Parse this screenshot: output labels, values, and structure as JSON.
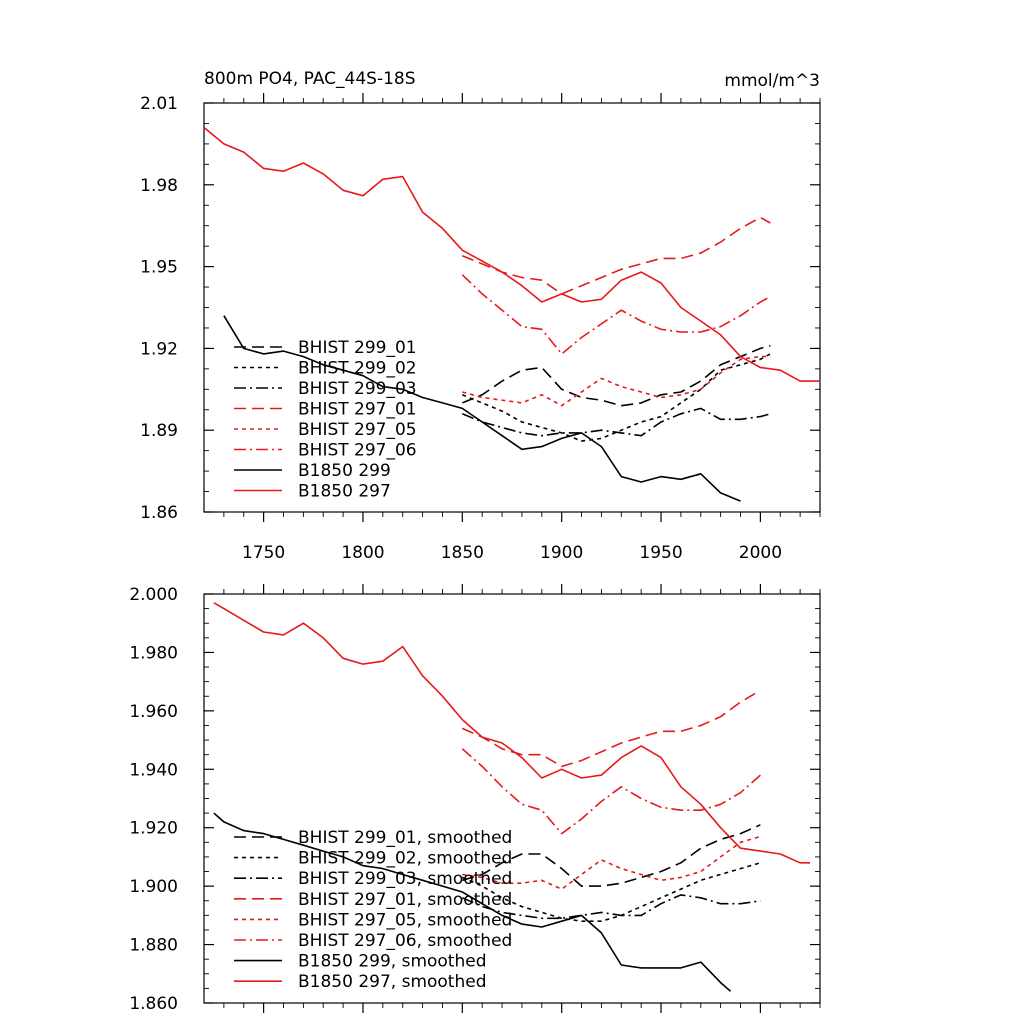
{
  "chart_data": [
    {
      "type": "line",
      "title": "800m PO4, PAC_44S-18S",
      "units": "mmol/m^3",
      "xlim": [
        1720,
        2030
      ],
      "ylim": [
        1.86,
        2.01
      ],
      "yticks": [
        "2.01",
        "1.98",
        "1.95",
        "1.92",
        "1.89",
        "1.86"
      ],
      "xticks": [
        "1750",
        "1800",
        "1850",
        "1900",
        "1950",
        "2000"
      ],
      "series": [
        {
          "name": "BHIST 299_01",
          "color": "#000000",
          "dash": "12,6",
          "x": [
            1850,
            1860,
            1870,
            1880,
            1890,
            1900,
            1910,
            1920,
            1930,
            1940,
            1950,
            1960,
            1970,
            1980,
            1990,
            2000,
            2005
          ],
          "y": [
            1.9,
            1.903,
            1.908,
            1.912,
            1.913,
            1.905,
            1.902,
            1.901,
            1.899,
            1.9,
            1.903,
            1.904,
            1.908,
            1.914,
            1.917,
            1.92,
            1.921
          ]
        },
        {
          "name": "BHIST 299_02",
          "color": "#000000",
          "dash": "4,4",
          "x": [
            1850,
            1860,
            1870,
            1880,
            1890,
            1900,
            1910,
            1920,
            1930,
            1940,
            1950,
            1960,
            1970,
            1980,
            1990,
            2000,
            2005
          ],
          "y": [
            1.903,
            1.9,
            1.897,
            1.893,
            1.891,
            1.889,
            1.886,
            1.887,
            1.89,
            1.893,
            1.895,
            1.9,
            1.905,
            1.912,
            1.914,
            1.916,
            1.918
          ]
        },
        {
          "name": "BHIST 299_03",
          "color": "#000000",
          "dash": "12,4,2,4",
          "x": [
            1850,
            1860,
            1870,
            1880,
            1890,
            1900,
            1910,
            1920,
            1930,
            1940,
            1950,
            1960,
            1970,
            1980,
            1990,
            2000,
            2005
          ],
          "y": [
            1.896,
            1.893,
            1.891,
            1.889,
            1.888,
            1.889,
            1.889,
            1.89,
            1.889,
            1.888,
            1.893,
            1.896,
            1.898,
            1.894,
            1.894,
            1.895,
            1.896
          ]
        },
        {
          "name": "BHIST 297_01",
          "color": "#e8191c",
          "dash": "12,6",
          "x": [
            1850,
            1860,
            1870,
            1880,
            1890,
            1900,
            1910,
            1920,
            1930,
            1940,
            1950,
            1960,
            1970,
            1980,
            1990,
            2000,
            2005
          ],
          "y": [
            1.954,
            1.951,
            1.948,
            1.946,
            1.945,
            1.94,
            1.943,
            1.946,
            1.949,
            1.951,
            1.953,
            1.953,
            1.955,
            1.959,
            1.964,
            1.968,
            1.966
          ]
        },
        {
          "name": "BHIST 297_05",
          "color": "#e8191c",
          "dash": "4,4",
          "x": [
            1850,
            1860,
            1870,
            1880,
            1890,
            1900,
            1910,
            1920,
            1930,
            1940,
            1950,
            1960,
            1970,
            1980,
            1990,
            2000,
            2005
          ],
          "y": [
            1.904,
            1.902,
            1.901,
            1.9,
            1.903,
            1.899,
            1.904,
            1.909,
            1.906,
            1.904,
            1.902,
            1.903,
            1.905,
            1.911,
            1.916,
            1.917,
            1.917
          ]
        },
        {
          "name": "BHIST 297_06",
          "color": "#e8191c",
          "dash": "12,4,2,4",
          "x": [
            1850,
            1860,
            1870,
            1880,
            1890,
            1900,
            1910,
            1920,
            1930,
            1940,
            1950,
            1960,
            1970,
            1980,
            1990,
            2000,
            2005
          ],
          "y": [
            1.947,
            1.94,
            1.934,
            1.928,
            1.927,
            1.918,
            1.924,
            1.929,
            1.934,
            1.93,
            1.927,
            1.926,
            1.926,
            1.928,
            1.932,
            1.937,
            1.939
          ]
        },
        {
          "name": "B1850 299",
          "color": "#000000",
          "dash": "",
          "x": [
            1730,
            1740,
            1750,
            1760,
            1770,
            1780,
            1790,
            1800,
            1810,
            1820,
            1830,
            1840,
            1850,
            1860,
            1870,
            1880,
            1890,
            1900,
            1910,
            1920,
            1930,
            1940,
            1950,
            1960,
            1970,
            1980,
            1990
          ],
          "y": [
            1.932,
            1.92,
            1.918,
            1.919,
            1.917,
            1.914,
            1.912,
            1.91,
            1.906,
            1.905,
            1.902,
            1.9,
            1.898,
            1.893,
            1.888,
            1.883,
            1.884,
            1.887,
            1.889,
            1.884,
            1.873,
            1.871,
            1.873,
            1.872,
            1.874,
            1.867,
            1.864
          ]
        },
        {
          "name": "B1850 297",
          "color": "#e8191c",
          "dash": "",
          "x": [
            1720,
            1730,
            1740,
            1750,
            1760,
            1770,
            1780,
            1790,
            1800,
            1810,
            1820,
            1830,
            1840,
            1850,
            1860,
            1870,
            1880,
            1890,
            1900,
            1910,
            1920,
            1930,
            1940,
            1950,
            1960,
            1970,
            1980,
            1990,
            2000,
            2010,
            2020,
            2030
          ],
          "y": [
            2.001,
            1.995,
            1.992,
            1.986,
            1.985,
            1.988,
            1.984,
            1.978,
            1.976,
            1.982,
            1.983,
            1.97,
            1.964,
            1.956,
            1.952,
            1.948,
            1.943,
            1.937,
            1.94,
            1.937,
            1.938,
            1.945,
            1.948,
            1.944,
            1.935,
            1.93,
            1.925,
            1.917,
            1.913,
            1.912,
            1.908,
            1.908
          ]
        }
      ]
    },
    {
      "type": "line",
      "title": "",
      "xlim": [
        1720,
        2030
      ],
      "ylim": [
        1.86,
        2.0
      ],
      "yticks": [
        "2.000",
        "1.980",
        "1.960",
        "1.940",
        "1.920",
        "1.900",
        "1.880",
        "1.860"
      ],
      "series": [
        {
          "name": "BHIST 299_01, smoothed",
          "color": "#000000",
          "dash": "12,6",
          "x": [
            1850,
            1860,
            1870,
            1880,
            1890,
            1900,
            1910,
            1920,
            1930,
            1940,
            1950,
            1960,
            1970,
            1980,
            1990,
            2000
          ],
          "y": [
            1.902,
            1.904,
            1.908,
            1.911,
            1.911,
            1.906,
            1.9,
            1.9,
            1.901,
            1.903,
            1.905,
            1.908,
            1.913,
            1.916,
            1.918,
            1.921
          ]
        },
        {
          "name": "BHIST 299_02, smoothed",
          "color": "#000000",
          "dash": "4,4",
          "x": [
            1850,
            1860,
            1870,
            1880,
            1890,
            1900,
            1910,
            1920,
            1930,
            1940,
            1950,
            1960,
            1970,
            1980,
            1990,
            2000
          ],
          "y": [
            1.903,
            1.9,
            1.896,
            1.893,
            1.891,
            1.889,
            1.888,
            1.888,
            1.89,
            1.893,
            1.896,
            1.899,
            1.902,
            1.904,
            1.906,
            1.908
          ]
        },
        {
          "name": "BHIST 299_03, smoothed",
          "color": "#000000",
          "dash": "12,4,2,4",
          "x": [
            1850,
            1860,
            1870,
            1880,
            1890,
            1900,
            1910,
            1920,
            1930,
            1940,
            1950,
            1960,
            1970,
            1980,
            1990,
            2000
          ],
          "y": [
            1.896,
            1.893,
            1.891,
            1.89,
            1.889,
            1.889,
            1.89,
            1.891,
            1.89,
            1.89,
            1.894,
            1.897,
            1.896,
            1.894,
            1.894,
            1.895
          ]
        },
        {
          "name": "BHIST 297_01, smoothed",
          "color": "#e8191c",
          "dash": "12,6",
          "x": [
            1850,
            1860,
            1870,
            1880,
            1890,
            1900,
            1910,
            1920,
            1930,
            1940,
            1950,
            1960,
            1970,
            1980,
            1990,
            2000
          ],
          "y": [
            1.954,
            1.951,
            1.947,
            1.945,
            1.945,
            1.941,
            1.943,
            1.946,
            1.949,
            1.951,
            1.953,
            1.953,
            1.955,
            1.958,
            1.963,
            1.967
          ]
        },
        {
          "name": "BHIST 297_05, smoothed",
          "color": "#e8191c",
          "dash": "4,4",
          "x": [
            1850,
            1860,
            1870,
            1880,
            1890,
            1900,
            1910,
            1920,
            1930,
            1940,
            1950,
            1960,
            1970,
            1980,
            1990,
            2000
          ],
          "y": [
            1.904,
            1.903,
            1.901,
            1.901,
            1.902,
            1.899,
            1.904,
            1.909,
            1.906,
            1.904,
            1.902,
            1.903,
            1.905,
            1.91,
            1.915,
            1.917
          ]
        },
        {
          "name": "BHIST 297_06, smoothed",
          "color": "#e8191c",
          "dash": "12,4,2,4",
          "x": [
            1850,
            1860,
            1870,
            1880,
            1890,
            1900,
            1910,
            1920,
            1930,
            1940,
            1950,
            1960,
            1970,
            1980,
            1990,
            2000
          ],
          "y": [
            1.947,
            1.941,
            1.934,
            1.928,
            1.926,
            1.918,
            1.923,
            1.929,
            1.934,
            1.93,
            1.927,
            1.926,
            1.926,
            1.928,
            1.932,
            1.938
          ]
        },
        {
          "name": "B1850 299, smoothed",
          "color": "#000000",
          "dash": "",
          "x": [
            1725,
            1730,
            1740,
            1750,
            1760,
            1770,
            1780,
            1790,
            1800,
            1810,
            1820,
            1830,
            1840,
            1850,
            1860,
            1870,
            1880,
            1890,
            1900,
            1910,
            1920,
            1930,
            1940,
            1950,
            1960,
            1970,
            1980,
            1985
          ],
          "y": [
            1.925,
            1.922,
            1.919,
            1.918,
            1.916,
            1.914,
            1.912,
            1.91,
            1.907,
            1.906,
            1.904,
            1.902,
            1.9,
            1.898,
            1.894,
            1.89,
            1.887,
            1.886,
            1.888,
            1.89,
            1.884,
            1.873,
            1.872,
            1.872,
            1.872,
            1.874,
            1.867,
            1.864
          ]
        },
        {
          "name": "B1850 297, smoothed",
          "color": "#e8191c",
          "dash": "",
          "x": [
            1725,
            1730,
            1740,
            1750,
            1760,
            1770,
            1780,
            1790,
            1800,
            1810,
            1820,
            1830,
            1840,
            1850,
            1860,
            1870,
            1880,
            1890,
            1900,
            1910,
            1920,
            1930,
            1940,
            1950,
            1960,
            1970,
            1980,
            1990,
            2000,
            2010,
            2020,
            2025
          ],
          "y": [
            1.997,
            1.995,
            1.991,
            1.987,
            1.986,
            1.99,
            1.985,
            1.978,
            1.976,
            1.977,
            1.982,
            1.972,
            1.965,
            1.957,
            1.951,
            1.949,
            1.944,
            1.937,
            1.94,
            1.937,
            1.938,
            1.944,
            1.948,
            1.944,
            1.934,
            1.928,
            1.92,
            1.913,
            1.912,
            1.911,
            1.908,
            1.908
          ]
        }
      ]
    }
  ]
}
